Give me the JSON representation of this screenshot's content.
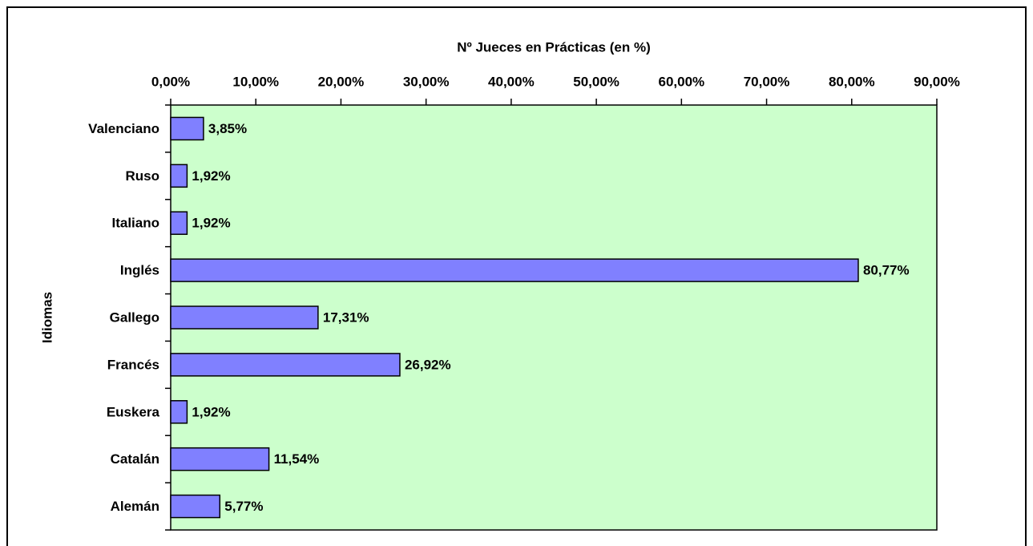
{
  "chart_data": {
    "type": "barh",
    "title": "Nº Jueces en Prácticas (en %)",
    "y_label": "Idiomas",
    "categories": [
      "Valenciano",
      "Ruso",
      "Italiano",
      "Inglés",
      "Gallego",
      "Francés",
      "Euskera",
      "Catalán",
      "Alemán"
    ],
    "values": [
      3.85,
      1.92,
      1.92,
      80.77,
      17.31,
      26.92,
      1.92,
      11.54,
      5.77
    ],
    "value_labels": [
      "3,85%",
      "1,92%",
      "1,92%",
      "80,77%",
      "17,31%",
      "26,92%",
      "1,92%",
      "11,54%",
      "5,77%"
    ],
    "color": "#8080ff",
    "plot_background": "#ccffcc",
    "xlim": [
      0,
      90
    ],
    "xticks": [
      {
        "value": 0,
        "label": "0,00%"
      },
      {
        "value": 10,
        "label": "10,00%"
      },
      {
        "value": 20,
        "label": "20,00%"
      },
      {
        "value": 30,
        "label": "30,00%"
      },
      {
        "value": 40,
        "label": "40,00%"
      },
      {
        "value": 50,
        "label": "50,00%"
      },
      {
        "value": 60,
        "label": "60,00%"
      },
      {
        "value": 70,
        "label": "70,00%"
      },
      {
        "value": 80,
        "label": "80,00%"
      },
      {
        "value": 90,
        "label": "90,00%"
      }
    ]
  }
}
